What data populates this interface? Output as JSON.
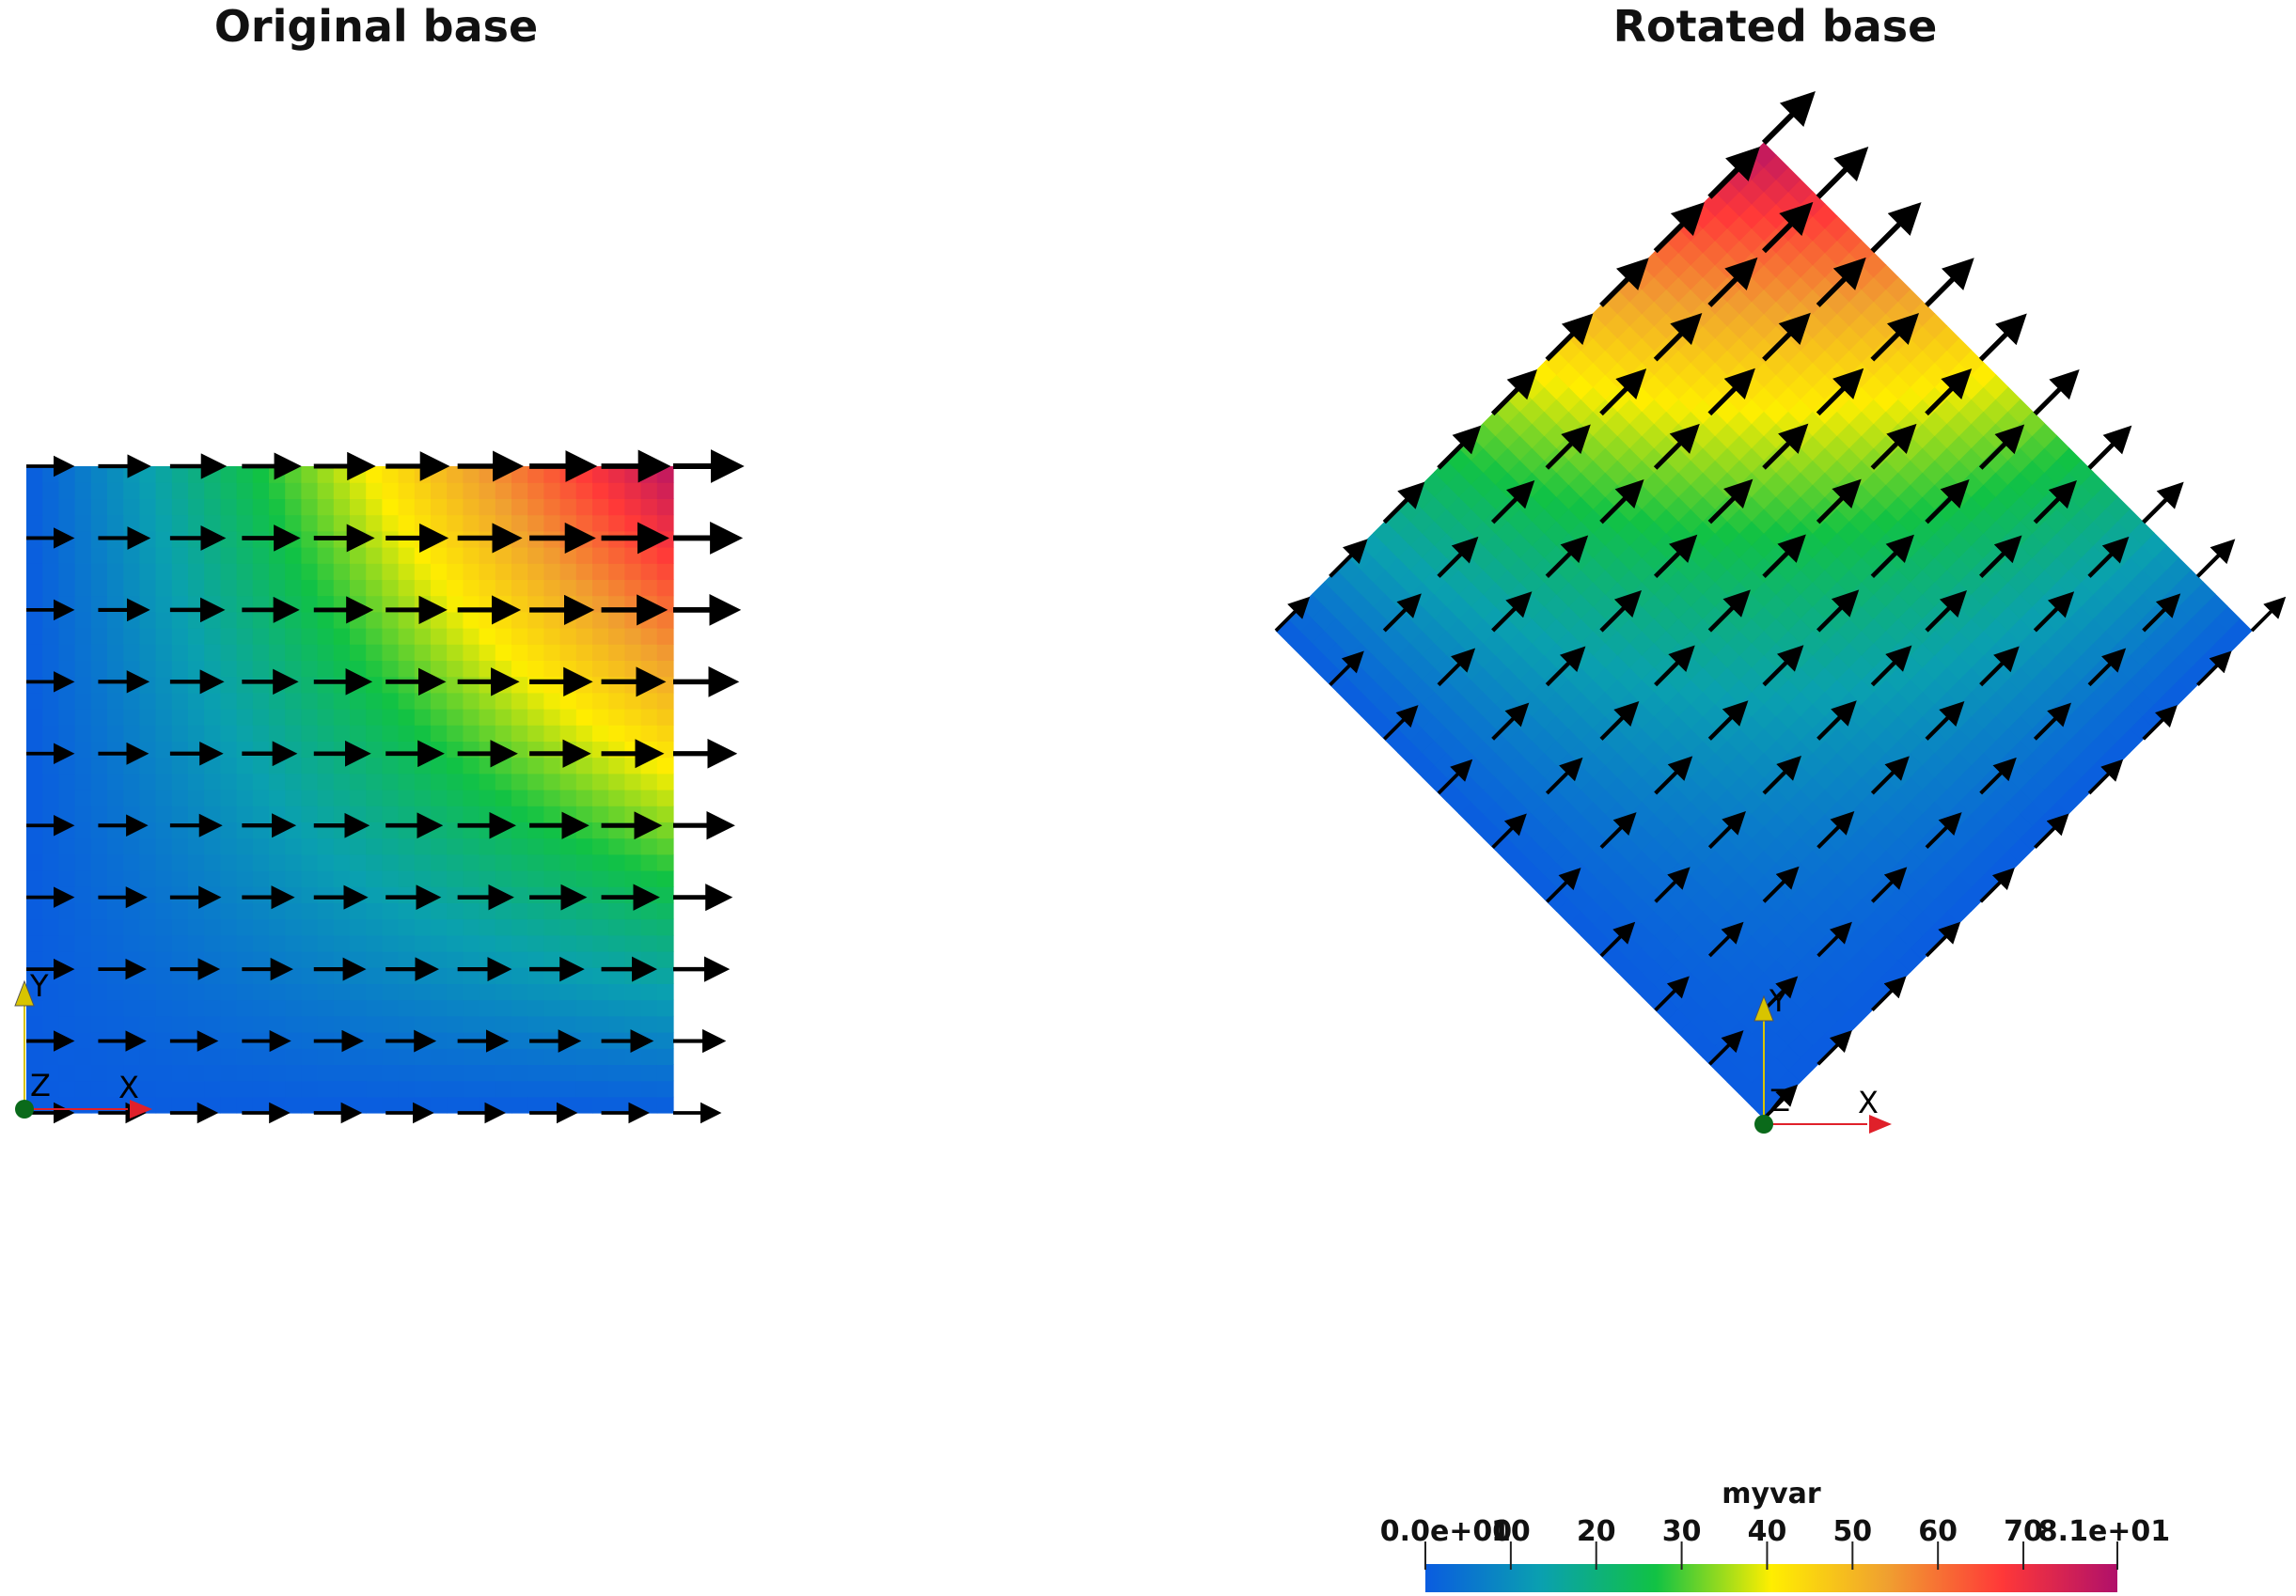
{
  "panels": [
    {
      "title": "Original base",
      "orientation": "axis-aligned"
    },
    {
      "title": "Rotated base",
      "orientation": "rotated-45"
    }
  ],
  "axes_triad": {
    "x_label": "X",
    "y_label": "Y",
    "z_label": "Z",
    "x_color": "#e0202a",
    "y_color": "#d8c400",
    "z_color": "#0a6a1a"
  },
  "colorbar": {
    "title": "myvar",
    "min": 0,
    "max": 81,
    "tick_values": [
      0,
      10,
      20,
      30,
      40,
      50,
      60,
      70,
      81
    ],
    "tick_labels": [
      "0.0e+00",
      "10",
      "20",
      "30",
      "40",
      "50",
      "60",
      "70",
      "8.1e+01"
    ],
    "colormap": [
      "#0a5ce0",
      "#0aa0b0",
      "#11c244",
      "#ffee00",
      "#f0a030",
      "#ff3838",
      "#b0106a"
    ]
  },
  "glyphs": {
    "grid_points_per_side": 10,
    "color": "#000000"
  }
}
